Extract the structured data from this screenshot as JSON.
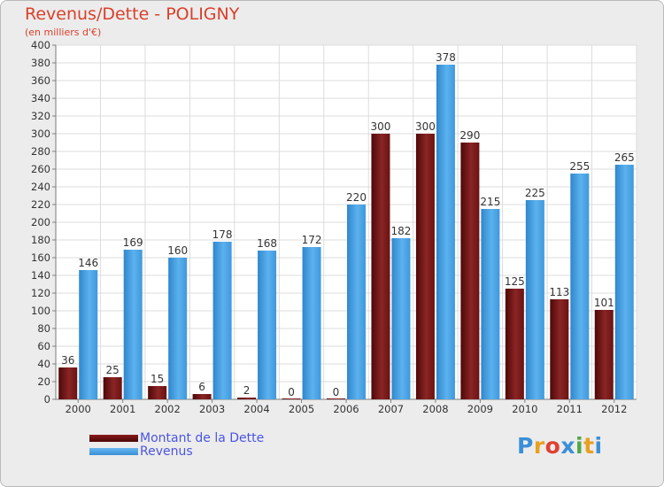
{
  "title": "Revenus/Dette - POLIGNY",
  "subtitle": "(en milliers d'€)",
  "brand": {
    "text": "Proxiti",
    "letters": [
      {
        "ch": "P",
        "color": "#3a8fd8"
      },
      {
        "ch": "r",
        "color": "#e8a020"
      },
      {
        "ch": "o",
        "color": "#e04030"
      },
      {
        "ch": "x",
        "color": "#3a8fd8"
      },
      {
        "ch": "i",
        "color": "#50a848"
      },
      {
        "ch": "t",
        "color": "#e8a020"
      },
      {
        "ch": "i",
        "color": "#3a8fd8"
      }
    ]
  },
  "legend": [
    {
      "label": "Montant de la Dette",
      "color": "#6b0d0d"
    },
    {
      "label": "Revenus",
      "color": "#4aa3e6"
    }
  ],
  "chart_data": {
    "type": "bar",
    "categories": [
      "2000",
      "2001",
      "2002",
      "2003",
      "2004",
      "2005",
      "2006",
      "2007",
      "2008",
      "2009",
      "2010",
      "2011",
      "2012"
    ],
    "series": [
      {
        "name": "Montant de la Dette",
        "color": "#7a1a1a",
        "values": [
          36,
          25,
          15,
          6,
          2,
          0,
          0,
          300,
          300,
          290,
          125,
          113,
          101
        ]
      },
      {
        "name": "Revenus",
        "color": "#4aa3e6",
        "values": [
          146,
          169,
          160,
          178,
          168,
          172,
          220,
          182,
          378,
          215,
          225,
          255,
          265
        ]
      }
    ],
    "ylim": [
      0,
      400
    ],
    "yticks": [
      0,
      20,
      40,
      60,
      80,
      100,
      120,
      140,
      160,
      180,
      200,
      220,
      240,
      260,
      280,
      300,
      320,
      340,
      360,
      380,
      400
    ],
    "grid": true,
    "legend_position": "bottom-left"
  }
}
